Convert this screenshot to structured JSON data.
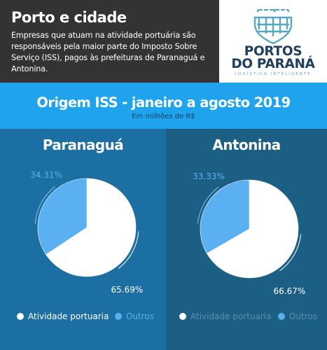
{
  "header": {
    "title": "Porto e cidade",
    "description": "Empresas que atuam na atividade portuária são responsáveis pela maior parte do Imposto Sobre Serviço (ISS), pagos às prefeituras de Paranaguá e Antonina."
  },
  "logo": {
    "line1": "PORTOS",
    "line2": "DO PARANÁ",
    "tagline": "LOGÍSTICA INTELIGENTE",
    "icon": "lighthouse-grid-icon"
  },
  "colors": {
    "header_bg": "#333333",
    "banner_bg": "#1ea3ec",
    "panel_left_bg": "#1c6fa2",
    "panel_right_bg": "#1c5f84",
    "slice_port": "#ffffff",
    "slice_other": "#5ab0f1",
    "logo_navy": "#1f3f5f",
    "logo_teal": "#56a7c2"
  },
  "chart_data": {
    "type": "pie",
    "title": "Origem ISS - janeiro a agosto 2019",
    "subtitle": "Em milhões de R$",
    "legend_entries": [
      "Atividade portuaria",
      "Outros"
    ],
    "charts": [
      {
        "title": "Paranaguá",
        "slices": [
          {
            "name": "Atividade portuaria",
            "value": 65.69,
            "label": "65.69%"
          },
          {
            "name": "Outros",
            "value": 34.31,
            "label": "34.31%"
          }
        ]
      },
      {
        "title": "Antonina",
        "slices": [
          {
            "name": "Atividade portuaria",
            "value": 66.67,
            "label": "66.67%"
          },
          {
            "name": "Outros",
            "value": 33.33,
            "label": "33.33%"
          }
        ]
      }
    ]
  }
}
